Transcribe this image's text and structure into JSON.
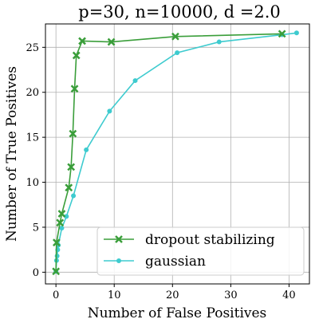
{
  "chart_data": {
    "type": "line",
    "title": "p=30, n=10000, d =2.0",
    "xlabel": "Number of False Positives",
    "ylabel": "Number of True Positives",
    "xlim": [
      -1.8,
      43.5
    ],
    "ylim": [
      -1.3,
      27.6
    ],
    "xticks": [
      0,
      10,
      20,
      30,
      40
    ],
    "yticks": [
      0,
      5,
      10,
      15,
      20,
      25
    ],
    "grid": true,
    "legend_position": "lower-right",
    "series": [
      {
        "name": "dropout stabilizing",
        "color": "#3a9e3a",
        "marker": "x",
        "points": [
          [
            0.0,
            0.1
          ],
          [
            0.1,
            3.3
          ],
          [
            0.7,
            5.5
          ],
          [
            1.0,
            6.5
          ],
          [
            2.2,
            9.4
          ],
          [
            2.6,
            11.7
          ],
          [
            2.9,
            15.4
          ],
          [
            3.2,
            20.4
          ],
          [
            3.5,
            24.1
          ],
          [
            4.5,
            25.7
          ],
          [
            9.5,
            25.6
          ],
          [
            20.5,
            26.2
          ],
          [
            38.8,
            26.5
          ]
        ]
      },
      {
        "name": "gaussian",
        "color": "#3ecbcf",
        "marker": "o",
        "points": [
          [
            0.0,
            0.1
          ],
          [
            0.1,
            1.3
          ],
          [
            0.2,
            1.8
          ],
          [
            0.3,
            2.5
          ],
          [
            0.4,
            3.0
          ],
          [
            1.0,
            4.9
          ],
          [
            1.8,
            6.2
          ],
          [
            3.0,
            8.5
          ],
          [
            5.2,
            13.6
          ],
          [
            9.2,
            17.9
          ],
          [
            13.6,
            21.3
          ],
          [
            20.8,
            24.4
          ],
          [
            28.0,
            25.6
          ],
          [
            38.8,
            26.4
          ],
          [
            41.3,
            26.6
          ]
        ]
      }
    ]
  }
}
